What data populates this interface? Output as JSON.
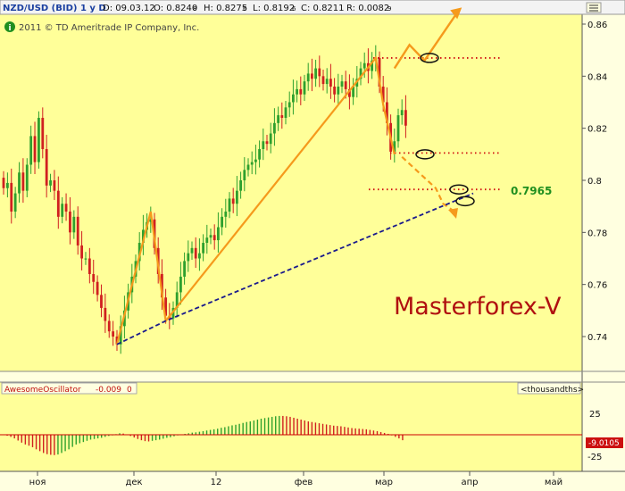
{
  "header": {
    "symbol": "NZD/USD (BID) 1 y D",
    "date": "D: 09.03.12",
    "open": "O: 0.8240",
    "open_suffix": "8",
    "high": "H: 0.8275",
    "high_suffix": "6",
    "low": "L: 0.8192",
    "low_suffix": "6",
    "close": "C: 0.8211",
    "close_suffix": "",
    "range": "R: 0.0082",
    "range_suffix": "9",
    "copyright": "2011 © TD Ameritrade IP Company, Inc.",
    "info_glyph": "i",
    "menu_icon": "hamburger-icon"
  },
  "watermark": "Masterforex-V",
  "annotation_level": "0.7965",
  "oscillator": {
    "name": "AwesomeOscillator",
    "value": "-0.009",
    "param": "0",
    "units": "<thousandths>",
    "current_label": "-9.0105",
    "ticks": [
      "25",
      "-25"
    ]
  },
  "colors": {
    "background": "#ffffe0",
    "bull": "#2ea02e",
    "bear": "#d02020",
    "trendline": "#f59a1c",
    "support": "#1a1a8c",
    "level_dots": "#d01010",
    "label_green": "#1f8f1f",
    "watermark": "#b01010"
  },
  "chart_data": {
    "type": "candlestick",
    "price_axis": {
      "min": 0.73,
      "max": 0.865,
      "ticks": [
        "0.86",
        "0.84",
        "0.82",
        "0.8",
        "0.78",
        "0.76",
        "0.74"
      ]
    },
    "time_axis": [
      "ноя",
      "дек",
      "12",
      "фев",
      "мар",
      "апр",
      "май"
    ],
    "orange_path": [
      [
        0,
        0.737
      ],
      [
        9,
        0.788
      ],
      [
        13,
        0.746
      ],
      [
        69,
        0.847
      ],
      [
        71,
        0.829
      ],
      [
        74,
        0.81
      ]
    ],
    "orange_dashed_projection": [
      [
        76,
        0.809
      ],
      [
        82,
        0.801
      ],
      [
        85,
        0.797
      ],
      [
        87,
        0.791
      ],
      [
        90,
        0.788
      ]
    ],
    "orange_up_projection": [
      [
        74,
        0.843
      ],
      [
        78,
        0.852
      ],
      [
        82,
        0.846
      ],
      [
        91,
        0.865
      ]
    ],
    "support_line": [
      [
        0,
        0.737
      ],
      [
        13,
        0.746
      ],
      [
        95,
        0.795
      ]
    ],
    "dotted_levels": [
      0.847,
      0.8105,
      0.7965
    ],
    "ellipse_levels": [
      0.847,
      0.81,
      0.7965,
      0.792
    ],
    "pre_closes": [
      0.797,
      0.799,
      0.788,
      0.795,
      0.803,
      0.796,
      0.806,
      0.817,
      0.807,
      0.824,
      0.812,
      0.798,
      0.8,
      0.796,
      0.786,
      0.791,
      0.788,
      0.78,
      0.786,
      0.775,
      0.77,
      0.77,
      0.764,
      0.761,
      0.756,
      0.751,
      0.746,
      0.742,
      0.74
    ],
    "main_closes": [
      0.737,
      0.744,
      0.75,
      0.757,
      0.763,
      0.769,
      0.776,
      0.781,
      0.784,
      0.785,
      0.774,
      0.764,
      0.755,
      0.748,
      0.747,
      0.751,
      0.757,
      0.763,
      0.769,
      0.772,
      0.774,
      0.77,
      0.772,
      0.776,
      0.778,
      0.779,
      0.777,
      0.782,
      0.786,
      0.788,
      0.793,
      0.791,
      0.796,
      0.8,
      0.804,
      0.806,
      0.807,
      0.808,
      0.812,
      0.815,
      0.814,
      0.818,
      0.822,
      0.825,
      0.824,
      0.828,
      0.83,
      0.833,
      0.835,
      0.833,
      0.838,
      0.841,
      0.839,
      0.843,
      0.84,
      0.837,
      0.839,
      0.836,
      0.833,
      0.836,
      0.838,
      0.835,
      0.832,
      0.836,
      0.839,
      0.843,
      0.845,
      0.842,
      0.846,
      0.847,
      0.836,
      0.83,
      0.822,
      0.811,
      0.815,
      0.825,
      0.827,
      0.821
    ],
    "ao_values": [
      0.0,
      -1.5,
      -3.5,
      -6.0,
      -9.5,
      -13.0,
      -16.0,
      -18.0,
      -20.5,
      -24.0,
      -27.0,
      -30.0,
      -32.0,
      -33.0,
      -33.5,
      -32.5,
      -30.0,
      -27.0,
      -24.0,
      -20.0,
      -16.0,
      -14.0,
      -12.0,
      -10.0,
      -8.0,
      -7.0,
      -6.0,
      -5.0,
      -3.5,
      -2.0,
      -1.0,
      1.0,
      2.5,
      2.0,
      0.5,
      -2.0,
      -4.5,
      -7.0,
      -9.0,
      -10.5,
      -11.0,
      -10.0,
      -9.0,
      -8.0,
      -6.5,
      -5.0,
      -4.0,
      -2.5,
      -1.0,
      0.5,
      1.5,
      2.5,
      3.5,
      4.0,
      5.0,
      6.0,
      7.0,
      8.0,
      9.0,
      10.0,
      11.5,
      12.5,
      14.0,
      15.5,
      16.5,
      18.0,
      19.5,
      21.0,
      22.0,
      23.5,
      25.0,
      26.5,
      27.5,
      28.5,
      29.5,
      30.5,
      31.0,
      31.0,
      30.5,
      29.5,
      28.0,
      26.5,
      25.0,
      23.5,
      22.0,
      21.0,
      20.0,
      19.0,
      18.0,
      17.0,
      16.0,
      15.0,
      14.5,
      14.0,
      13.0,
      12.0,
      11.0,
      10.5,
      10.0,
      9.5,
      9.0,
      8.0,
      7.0,
      6.0,
      4.5,
      3.0,
      1.5,
      -1.0,
      -3.5,
      -6.0,
      -9.0
    ],
    "ao_range": [
      -35,
      35
    ]
  }
}
